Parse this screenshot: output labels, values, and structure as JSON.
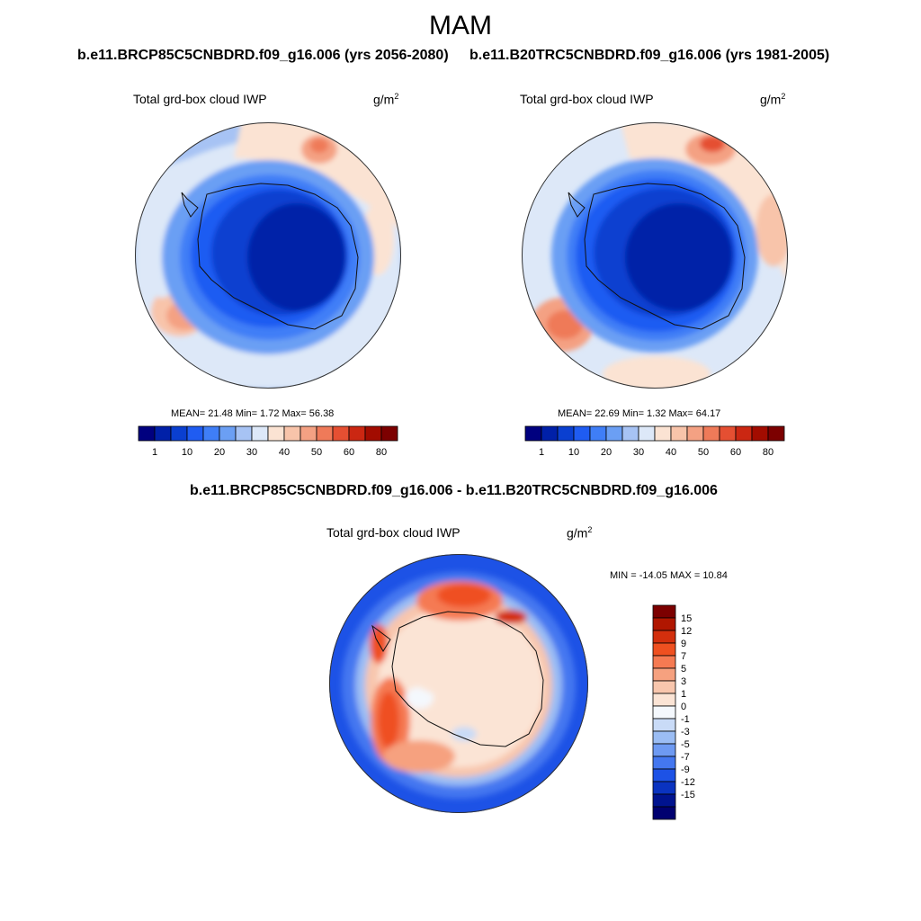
{
  "title": "MAM",
  "panels": [
    {
      "case_title": "b.e11.BRCP85C5CNBDRD.f09_g16.006 (yrs 2056-2080)",
      "variable": "Total grd-box cloud IWP",
      "units_base": "g/m",
      "units_exp": "2",
      "stats": "MEAN=  21.48  Min=   1.72  Max=  56.38"
    },
    {
      "case_title": "b.e11.B20TRC5CNBDRD.f09_g16.006 (yrs 1981-2005)",
      "variable": "Total grd-box cloud IWP",
      "units_base": "g/m",
      "units_exp": "2",
      "stats": "MEAN=  22.69  Min=   1.32  Max=  64.17"
    }
  ],
  "diff_panel": {
    "case_title": "b.e11.BRCP85C5CNBDRD.f09_g16.006 - b.e11.B20TRC5CNBDRD.f09_g16.006",
    "variable": "Total grd-box cloud IWP",
    "units_base": "g/m",
    "units_exp": "2",
    "stats": "MIN = -14.05 MAX =  10.84"
  },
  "chart_data": [
    {
      "type": "heatmap",
      "projection": "south-polar-stereographic",
      "title": "Total grd-box cloud IWP",
      "units": "g/m2",
      "mean": 21.48,
      "min": 1.72,
      "max": 56.38,
      "colorbar_ticks": [
        "1",
        "10",
        "20",
        "30",
        "40",
        "50",
        "60",
        "80"
      ],
      "colors": [
        "#00007f",
        "#0020a8",
        "#0a3fd0",
        "#1f5cf2",
        "#3f7ef7",
        "#6b9ff4",
        "#a7c3f4",
        "#dde8f8",
        "#fbe3d3",
        "#f8c4aa",
        "#f4a183",
        "#ef7a59",
        "#e54f32",
        "#cb2712",
        "#a20c00",
        "#7c0000"
      ]
    },
    {
      "type": "heatmap",
      "projection": "south-polar-stereographic",
      "title": "Total grd-box cloud IWP",
      "units": "g/m2",
      "mean": 22.69,
      "min": 1.32,
      "max": 64.17,
      "colorbar_ticks": [
        "1",
        "10",
        "20",
        "30",
        "40",
        "50",
        "60",
        "80"
      ],
      "colors": [
        "#00007f",
        "#0020a8",
        "#0a3fd0",
        "#1f5cf2",
        "#3f7ef7",
        "#6b9ff4",
        "#a7c3f4",
        "#dde8f8",
        "#fbe3d3",
        "#f8c4aa",
        "#f4a183",
        "#ef7a59",
        "#e54f32",
        "#cb2712",
        "#a20c00",
        "#7c0000"
      ]
    },
    {
      "type": "heatmap",
      "projection": "south-polar-stereographic",
      "title": "Total grd-box cloud IWP",
      "units": "g/m2",
      "min": -14.05,
      "max": 10.84,
      "colorbar_ticks": [
        "15",
        "12",
        "9",
        "7",
        "5",
        "3",
        "1",
        "0",
        "-1",
        "-3",
        "-5",
        "-7",
        "-9",
        "-12",
        "-15"
      ],
      "colors": [
        "#7c0000",
        "#b01600",
        "#d32f0d",
        "#ef5020",
        "#f57a52",
        "#f6a17f",
        "#f8c6ad",
        "#fbe4d5",
        "#f4f8fd",
        "#c9dbf7",
        "#9bbdf4",
        "#6e9af2",
        "#4477f0",
        "#1d52e6",
        "#0a33c0",
        "#00138f",
        "#000070"
      ]
    }
  ]
}
